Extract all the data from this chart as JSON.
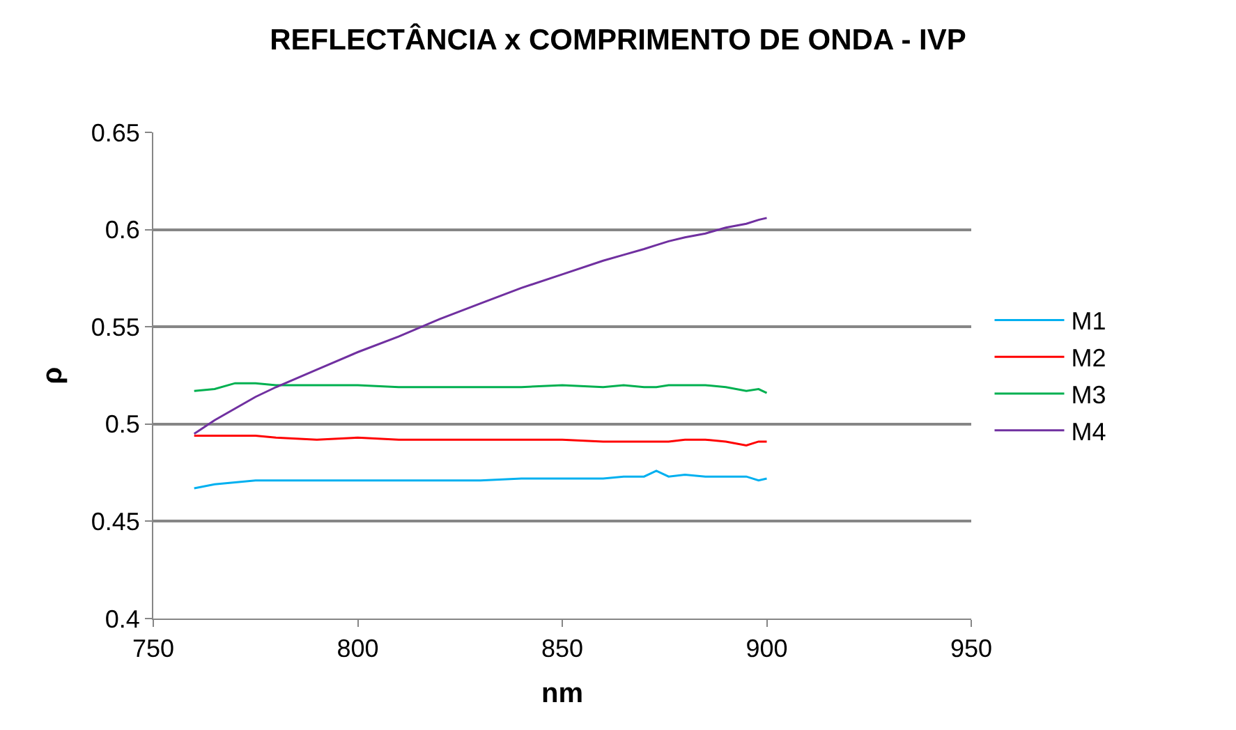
{
  "chart_data": {
    "type": "line",
    "title": "REFLECTÂNCIA x COMPRIMENTO DE ONDA - IVP",
    "xlabel": "nm",
    "ylabel": "ρ",
    "xlim": [
      750,
      950
    ],
    "xticks": [
      750,
      800,
      850,
      900,
      950
    ],
    "ylim": [
      0.4,
      0.65
    ],
    "yticks": [
      0.4,
      0.45,
      0.5,
      0.55,
      0.6,
      0.65
    ],
    "grid": "y",
    "legend": "right",
    "marker": "none",
    "line_style": "solid",
    "x": [
      760,
      765,
      770,
      775,
      780,
      790,
      800,
      810,
      820,
      830,
      840,
      850,
      860,
      865,
      870,
      873,
      876,
      880,
      885,
      890,
      895,
      898,
      900
    ],
    "series": [
      {
        "name": "M1",
        "color": "#00b0f0",
        "values": [
          0.467,
          0.469,
          0.47,
          0.471,
          0.471,
          0.471,
          0.471,
          0.471,
          0.471,
          0.471,
          0.472,
          0.472,
          0.472,
          0.473,
          0.473,
          0.476,
          0.473,
          0.474,
          0.473,
          0.473,
          0.473,
          0.471,
          0.472
        ]
      },
      {
        "name": "M2",
        "color": "#ff0000",
        "values": [
          0.494,
          0.494,
          0.494,
          0.494,
          0.493,
          0.492,
          0.493,
          0.492,
          0.492,
          0.492,
          0.492,
          0.492,
          0.491,
          0.491,
          0.491,
          0.491,
          0.491,
          0.492,
          0.492,
          0.491,
          0.489,
          0.491,
          0.491
        ]
      },
      {
        "name": "M3",
        "color": "#00b050",
        "values": [
          0.517,
          0.518,
          0.521,
          0.521,
          0.52,
          0.52,
          0.52,
          0.519,
          0.519,
          0.519,
          0.519,
          0.52,
          0.519,
          0.52,
          0.519,
          0.519,
          0.52,
          0.52,
          0.52,
          0.519,
          0.517,
          0.518,
          0.516
        ]
      },
      {
        "name": "M4",
        "color": "#7030a0",
        "values": [
          0.495,
          0.502,
          0.508,
          0.514,
          0.519,
          0.528,
          0.537,
          0.545,
          0.554,
          0.562,
          0.57,
          0.577,
          0.584,
          0.587,
          0.59,
          0.592,
          0.594,
          0.596,
          0.598,
          0.601,
          0.603,
          0.605,
          0.606
        ]
      }
    ]
  }
}
